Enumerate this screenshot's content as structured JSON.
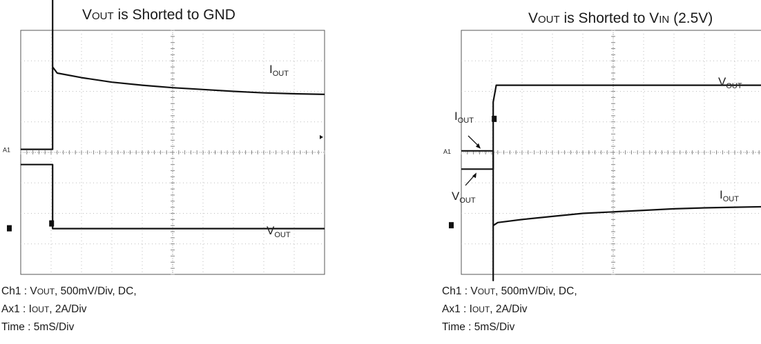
{
  "panels": [
    {
      "title": {
        "main": "V",
        "sub": "OUT",
        "rest": " is Shorted to GND"
      },
      "labels": {
        "iout": "I",
        "iout_sub": "OUT",
        "vout": "V",
        "vout_sub": "OUT",
        "a1": "A1",
        "ch1_marker": "1"
      },
      "caption": [
        {
          "pre": "Ch1 : V",
          "sc": "OUT",
          "post": ", 500mV/Div, DC,"
        },
        {
          "pre": "Ax1 : I",
          "sc": "OUT",
          "post": ", 2A/Div"
        },
        {
          "pre": "Time : 5mS/Div",
          "sc": "",
          "post": ""
        }
      ]
    },
    {
      "title": {
        "main": "V",
        "sub": "OUT",
        "rest": " is Shorted to V",
        "sub2": "IN",
        "rest2": " (2.5V)"
      },
      "labels": {
        "iout": "I",
        "iout_sub": "OUT",
        "vout": "V",
        "vout_sub": "OUT",
        "a1": "A1",
        "ch1_marker": "1"
      },
      "caption": [
        {
          "pre": "Ch1 : V",
          "sc": "OUT",
          "post": ", 500mV/Div, DC,"
        },
        {
          "pre": "Ax1 : I",
          "sc": "OUT",
          "post": ", 2A/Div"
        },
        {
          "pre": "Time : 5mS/Div",
          "sc": "",
          "post": ""
        }
      ]
    }
  ],
  "chart_data": [
    {
      "type": "line",
      "title": "VOUT is Shorted to GND",
      "x_unit": "div",
      "x_scale": "5mS/Div",
      "xlim": [
        0,
        10
      ],
      "y_unit": "div",
      "ylim": [
        -4,
        4
      ],
      "grid": true,
      "series": [
        {
          "name": "IOUT",
          "x": [
            0,
            1.05,
            1.05,
            1.05,
            1.2,
            2,
            3,
            4,
            5,
            6,
            7,
            8,
            9,
            10
          ],
          "y": [
            0.1,
            0.1,
            5.5,
            2.8,
            2.6,
            2.45,
            2.3,
            2.2,
            2.12,
            2.06,
            2.0,
            1.95,
            1.92,
            1.9
          ]
        },
        {
          "name": "VOUT",
          "x": [
            0,
            1.05,
            1.05,
            10
          ],
          "y": [
            -0.4,
            -0.4,
            -2.5,
            -2.5
          ]
        }
      ]
    },
    {
      "type": "line",
      "title": "VOUT is Shorted to VIN (2.5V)",
      "x_unit": "div",
      "x_scale": "5mS/Div",
      "xlim": [
        0,
        10
      ],
      "y_unit": "div",
      "ylim": [
        -4,
        4
      ],
      "grid": true,
      "series": [
        {
          "name": "VOUT",
          "x": [
            0,
            1.05,
            1.05,
            1.15,
            1.2,
            10
          ],
          "y": [
            -0.55,
            -0.55,
            1.65,
            2.2,
            2.2,
            2.2
          ]
        },
        {
          "name": "IOUT",
          "x": [
            0,
            1.05,
            1.05,
            1.05,
            1.2,
            2,
            3,
            4,
            5,
            6,
            7,
            8,
            9,
            10
          ],
          "y": [
            0.05,
            0.05,
            -4.2,
            -2.4,
            -2.3,
            -2.2,
            -2.1,
            -2.0,
            -1.95,
            -1.9,
            -1.85,
            -1.82,
            -1.8,
            -1.78
          ]
        }
      ]
    }
  ]
}
